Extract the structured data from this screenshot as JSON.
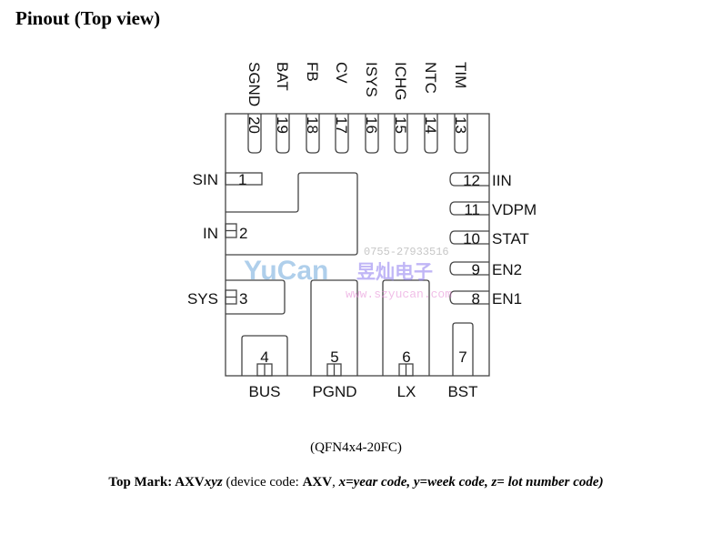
{
  "title": "Pinout (Top view)",
  "package": "(QFN4x4-20FC)",
  "top_mark": {
    "label": "Top Mark: AXV",
    "code_vars": "xyz",
    "device_prefix": " (device code: ",
    "device_code": "AXV",
    "sep": ", ",
    "legend": "x=year code, y=week code, z= lot number code)"
  },
  "pins": {
    "top": [
      {
        "num": "20",
        "name": "SGND"
      },
      {
        "num": "19",
        "name": "BAT"
      },
      {
        "num": "18",
        "name": "FB"
      },
      {
        "num": "17",
        "name": "CV"
      },
      {
        "num": "16",
        "name": "ISYS"
      },
      {
        "num": "15",
        "name": "ICHG"
      },
      {
        "num": "14",
        "name": "NTC"
      },
      {
        "num": "13",
        "name": "TIM"
      }
    ],
    "left": [
      {
        "num": "1",
        "name": "SIN"
      },
      {
        "num": "2",
        "name": "IN"
      },
      {
        "num": "3",
        "name": "SYS"
      }
    ],
    "right": [
      {
        "num": "12",
        "name": "IIN"
      },
      {
        "num": "11",
        "name": "VDPM"
      },
      {
        "num": "10",
        "name": "STAT"
      },
      {
        "num": "9",
        "name": "EN2"
      },
      {
        "num": "8",
        "name": "EN1"
      }
    ],
    "bottom": [
      {
        "num": "4",
        "name": "BUS"
      },
      {
        "num": "5",
        "name": "PGND"
      },
      {
        "num": "6",
        "name": "LX"
      },
      {
        "num": "7",
        "name": "BST"
      }
    ]
  },
  "watermark": {
    "brand": "YuCan",
    "chinese": "昱灿电子",
    "phone": "0755-27933516",
    "url": "www.szyucan.com"
  },
  "colors": {
    "outline": "#444444",
    "text": "#111111"
  }
}
